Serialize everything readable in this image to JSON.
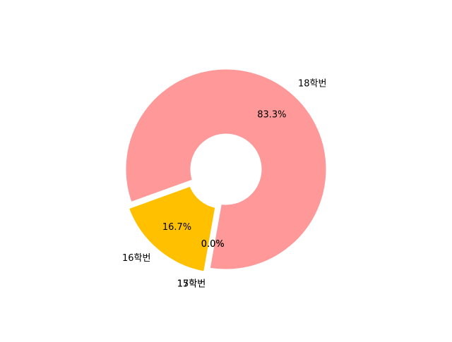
{
  "chart_data": {
    "type": "pie",
    "donut": true,
    "title": "",
    "slices": [
      {
        "label": "18학번",
        "value": 83.3,
        "pct_label": "83.3%",
        "color": "#ff9999",
        "exploded": false
      },
      {
        "label": "16학번",
        "value": 16.7,
        "pct_label": "16.7%",
        "color": "#ffc000",
        "exploded": true
      },
      {
        "label": "15학번",
        "value": 0.0,
        "pct_label": "0.0%",
        "color": "#8fd9b6",
        "exploded": true
      },
      {
        "label": "17학번",
        "value": 0.0,
        "pct_label": "0.0%",
        "color": "#d395d0",
        "exploded": true
      }
    ],
    "legend": "none"
  }
}
